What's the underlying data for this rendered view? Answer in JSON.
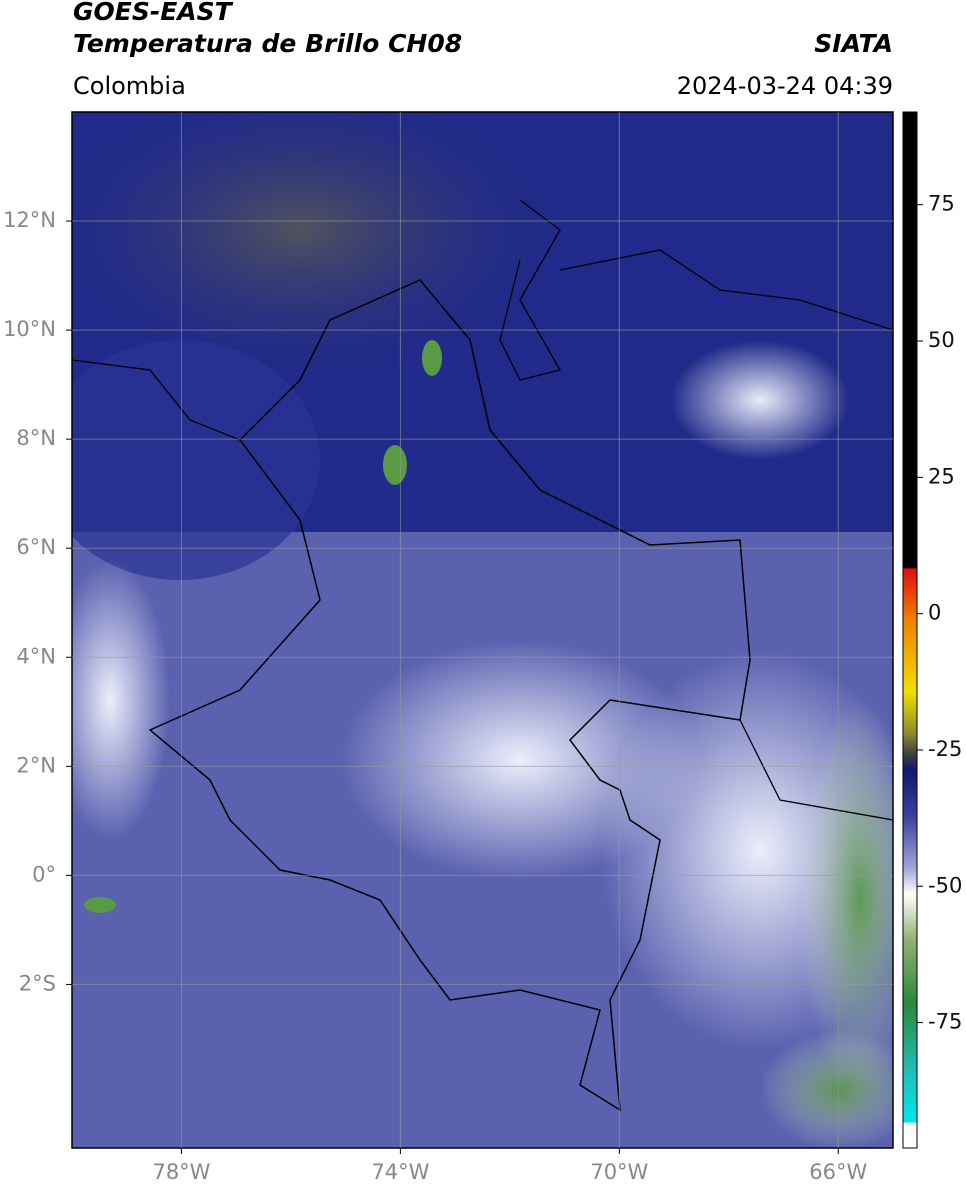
{
  "header": {
    "satellite": "GOES-EAST",
    "product": "Temperatura de Brillo CH08",
    "source": "SIATA",
    "region": "Colombia",
    "datetime": "2024-03-24 04:39"
  },
  "map": {
    "lonlim": [
      -80,
      -65
    ],
    "latlim": [
      -5,
      14
    ],
    "lon_ticks": [
      {
        "value": -78,
        "label": "78°W"
      },
      {
        "value": -74,
        "label": "74°W"
      },
      {
        "value": -70,
        "label": "70°W"
      },
      {
        "value": -66,
        "label": "66°W"
      }
    ],
    "lat_ticks": [
      {
        "value": 12,
        "label": "12°N"
      },
      {
        "value": 10,
        "label": "10°N"
      },
      {
        "value": 8,
        "label": "8°N"
      },
      {
        "value": 6,
        "label": "6°N"
      },
      {
        "value": 4,
        "label": "4°N"
      },
      {
        "value": 2,
        "label": "2°N"
      },
      {
        "value": 0,
        "label": "0°"
      },
      {
        "value": -2,
        "label": "2°S"
      }
    ]
  },
  "colorbar": {
    "lim": [
      -98,
      92
    ],
    "ticks": [
      75,
      50,
      25,
      0,
      -25,
      -50,
      -75
    ]
  }
}
